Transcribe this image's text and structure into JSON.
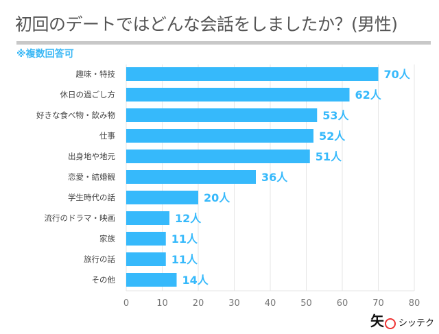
{
  "chart_data": {
    "type": "bar",
    "orientation": "horizontal",
    "title": "初回のデートではどんな会話をしましたか？(男性)",
    "subtitle": "※複数回答可",
    "categories": [
      "趣味・特技",
      "休日の過ごし方",
      "好きな食べ物・飲み物",
      "仕事",
      "出身地や地元",
      "恋愛・結婚観",
      "学生時代の話",
      "流行のドラマ・映画",
      "家族",
      "旅行の話",
      "その他"
    ],
    "values": [
      70,
      62,
      53,
      52,
      51,
      36,
      20,
      12,
      11,
      11,
      14
    ],
    "data_labels": [
      "70人",
      "62人",
      "53人",
      "52人",
      "51人",
      "36人",
      "20人",
      "12人",
      "11人",
      "11人",
      "14人"
    ],
    "xlim": [
      0,
      80
    ],
    "xticks": [
      "0",
      "10",
      "20",
      "30",
      "40",
      "50",
      "60",
      "70",
      "80"
    ],
    "grid": true,
    "colors": {
      "bar": "#36b9fb",
      "label": "#36b9fb"
    }
  },
  "logo": {
    "mark": "矢",
    "text": "シッテク"
  }
}
